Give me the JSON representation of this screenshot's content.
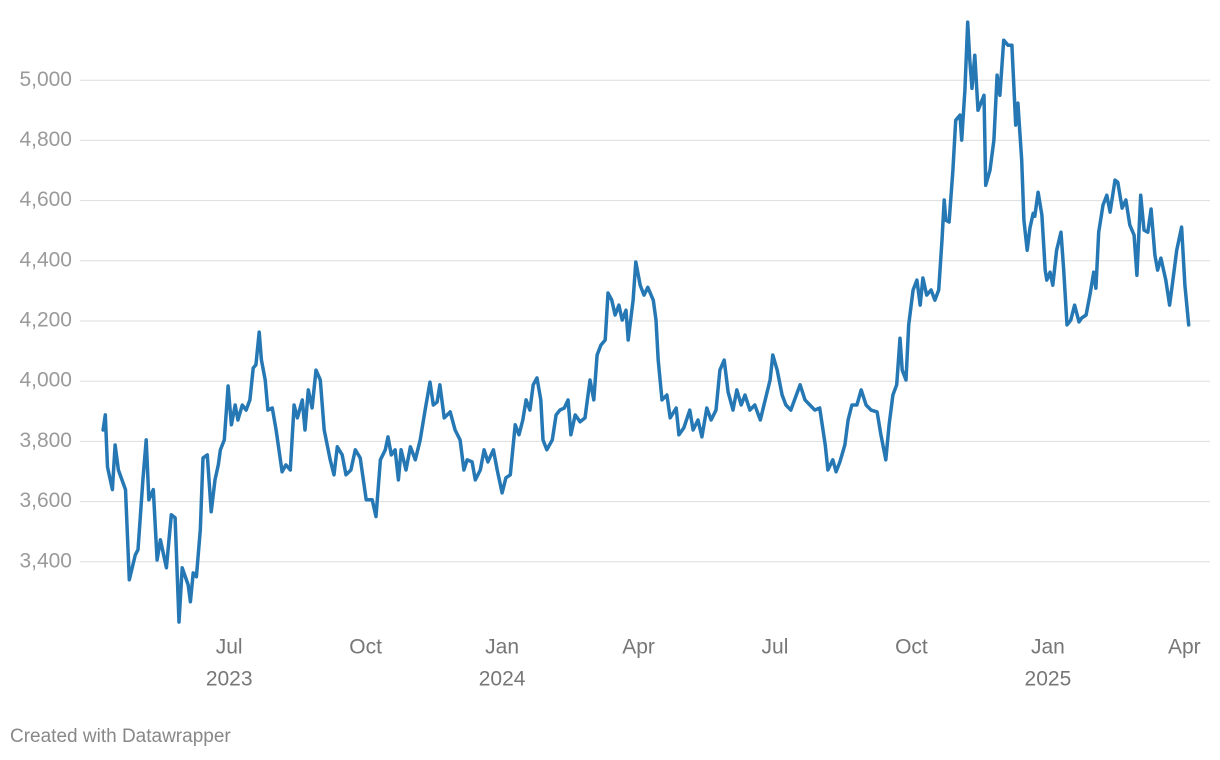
{
  "chart_data": {
    "type": "line",
    "credit": "Created with Datawrapper",
    "xlim": [
      2023.245,
      2025.297
    ],
    "ylim": [
      3180,
      5230
    ],
    "grid": true,
    "xticks": [
      {
        "value": 2023.5,
        "label": "Jul"
      },
      {
        "value": 2023.75,
        "label": "Oct"
      },
      {
        "value": 2024.0,
        "label": "Jan"
      },
      {
        "value": 2024.25,
        "label": "Apr"
      },
      {
        "value": 2024.5,
        "label": "Jul"
      },
      {
        "value": 2024.75,
        "label": "Oct"
      },
      {
        "value": 2025.0,
        "label": "Jan"
      },
      {
        "value": 2025.25,
        "label": "Apr"
      }
    ],
    "xtick_years": [
      {
        "value": 2023.5,
        "label": "2023"
      },
      {
        "value": 2024.0,
        "label": "2024"
      },
      {
        "value": 2025.0,
        "label": "2025"
      }
    ],
    "yticks": [
      {
        "value": 3400,
        "label": "3,400"
      },
      {
        "value": 3600,
        "label": "3,600"
      },
      {
        "value": 3800,
        "label": "3,800"
      },
      {
        "value": 4000,
        "label": "4,000"
      },
      {
        "value": 4200,
        "label": "4,200"
      },
      {
        "value": 4400,
        "label": "4,400"
      },
      {
        "value": 4600,
        "label": "4,600"
      },
      {
        "value": 4800,
        "label": "4,800"
      },
      {
        "value": 5000,
        "label": "5,000"
      }
    ],
    "x": [
      2023.269,
      2023.273,
      2023.277,
      2023.286,
      2023.291,
      2023.297,
      2023.31,
      2023.317,
      2023.328,
      2023.333,
      2023.342,
      2023.348,
      2023.353,
      2023.361,
      2023.368,
      2023.374,
      2023.385,
      2023.394,
      2023.401,
      2023.408,
      2023.414,
      2023.425,
      2023.429,
      2023.434,
      2023.44,
      2023.447,
      2023.452,
      2023.46,
      2023.467,
      2023.474,
      2023.48,
      2023.484,
      2023.491,
      2023.498,
      2023.504,
      2023.511,
      2023.516,
      2023.524,
      2023.531,
      2023.538,
      2023.544,
      2023.549,
      2023.555,
      2023.559,
      2023.566,
      2023.571,
      2023.579,
      2023.586,
      2023.597,
      2023.604,
      2023.612,
      2023.619,
      2023.625,
      2023.634,
      2023.639,
      2023.645,
      2023.652,
      2023.659,
      2023.667,
      2023.674,
      2023.685,
      2023.692,
      2023.698,
      2023.707,
      2023.714,
      2023.723,
      2023.731,
      2023.74,
      2023.751,
      2023.762,
      2023.769,
      2023.777,
      2023.786,
      2023.791,
      2023.797,
      2023.804,
      2023.81,
      2023.815,
      2023.824,
      2023.832,
      2023.841,
      2023.85,
      2023.859,
      2023.868,
      2023.874,
      2023.881,
      2023.886,
      2023.894,
      2023.905,
      2023.914,
      2023.923,
      2023.93,
      2023.936,
      2023.945,
      2023.951,
      2023.96,
      2023.967,
      2023.974,
      2023.984,
      2023.991,
      2024.0,
      2024.007,
      2024.015,
      2024.024,
      2024.031,
      2024.038,
      2024.044,
      2024.051,
      2024.057,
      2024.064,
      2024.071,
      2024.075,
      2024.082,
      2024.092,
      2024.099,
      2024.106,
      2024.114,
      2024.121,
      2024.126,
      2024.134,
      2024.143,
      2024.152,
      2024.161,
      2024.168,
      2024.174,
      2024.181,
      2024.189,
      2024.194,
      2024.201,
      2024.207,
      2024.214,
      2024.22,
      2024.227,
      2024.231,
      2024.24,
      2024.245,
      2024.253,
      2024.26,
      2024.267,
      2024.277,
      2024.282,
      2024.286,
      2024.293,
      2024.302,
      2024.308,
      2024.319,
      2024.324,
      2024.333,
      2024.344,
      2024.35,
      2024.359,
      2024.366,
      2024.375,
      2024.383,
      2024.392,
      2024.399,
      2024.407,
      2024.414,
      2024.423,
      2024.43,
      2024.438,
      2024.445,
      2024.454,
      2024.463,
      2024.473,
      2024.482,
      2024.491,
      2024.496,
      2024.504,
      2024.513,
      2024.52,
      2024.529,
      2024.537,
      2024.546,
      2024.555,
      2024.564,
      2024.573,
      2024.582,
      2024.592,
      2024.597,
      2024.606,
      2024.612,
      2024.619,
      2024.628,
      2024.634,
      2024.641,
      2024.65,
      2024.658,
      2024.667,
      2024.676,
      2024.687,
      2024.694,
      2024.703,
      2024.709,
      2024.716,
      2024.723,
      2024.729,
      2024.733,
      2024.74,
      2024.745,
      2024.753,
      2024.76,
      2024.766,
      2024.771,
      2024.778,
      2024.786,
      2024.793,
      2024.8,
      2024.806,
      2024.81,
      2024.813,
      2024.819,
      2024.826,
      2024.831,
      2024.839,
      2024.842,
      2024.848,
      2024.853,
      2024.857,
      2024.861,
      2024.866,
      2024.872,
      2024.883,
      2024.886,
      2024.894,
      2024.901,
      2024.907,
      2024.912,
      2024.919,
      2024.927,
      2024.934,
      2024.941,
      2024.945,
      2024.952,
      2024.956,
      2024.962,
      2024.967,
      2024.973,
      2024.976,
      2024.982,
      2024.989,
      2024.995,
      2024.998,
      2025.004,
      2025.009,
      2025.016,
      2025.024,
      2025.029,
      2025.035,
      2025.042,
      2025.049,
      2025.057,
      2025.062,
      2025.07,
      2025.077,
      2025.084,
      2025.088,
      2025.093,
      2025.101,
      2025.108,
      2025.114,
      2025.123,
      2025.128,
      2025.136,
      2025.143,
      2025.15,
      2025.158,
      2025.163,
      2025.17,
      2025.176,
      2025.183,
      2025.189,
      2025.196,
      2025.201,
      2025.207,
      2025.216,
      2025.223,
      2025.229,
      2025.236,
      2025.245,
      2025.251,
      2025.258
    ],
    "series": [
      {
        "color": "#2678b4",
        "values": [
          3838,
          3888,
          3715,
          3640,
          3788,
          3705,
          3640,
          3340,
          3423,
          3440,
          3672,
          3805,
          3606,
          3640,
          3406,
          3473,
          3380,
          3556,
          3546,
          3200,
          3380,
          3323,
          3267,
          3363,
          3350,
          3506,
          3745,
          3755,
          3566,
          3672,
          3722,
          3772,
          3805,
          3984,
          3855,
          3921,
          3871,
          3921,
          3904,
          3938,
          4044,
          4054,
          4163,
          4071,
          4004,
          3904,
          3911,
          3838,
          3699,
          3722,
          3705,
          3921,
          3878,
          3938,
          3838,
          3971,
          3911,
          4037,
          4004,
          3838,
          3739,
          3689,
          3782,
          3755,
          3689,
          3705,
          3772,
          3745,
          3606,
          3606,
          3550,
          3739,
          3772,
          3815,
          3755,
          3772,
          3672,
          3772,
          3705,
          3782,
          3739,
          3805,
          3904,
          3997,
          3921,
          3931,
          3988,
          3878,
          3898,
          3838,
          3805,
          3705,
          3739,
          3732,
          3672,
          3705,
          3772,
          3732,
          3772,
          3705,
          3629,
          3679,
          3689,
          3855,
          3822,
          3871,
          3938,
          3904,
          3988,
          4011,
          3938,
          3805,
          3772,
          3805,
          3888,
          3904,
          3911,
          3938,
          3822,
          3888,
          3865,
          3878,
          4004,
          3938,
          4087,
          4120,
          4137,
          4293,
          4269,
          4220,
          4253,
          4203,
          4236,
          4137,
          4269,
          4396,
          4319,
          4286,
          4312,
          4269,
          4203,
          4070,
          3938,
          3954,
          3878,
          3911,
          3822,
          3845,
          3904,
          3838,
          3871,
          3815,
          3911,
          3871,
          3904,
          4037,
          4070,
          3964,
          3904,
          3971,
          3921,
          3954,
          3904,
          3921,
          3871,
          3938,
          4004,
          4087,
          4037,
          3954,
          3921,
          3904,
          3944,
          3988,
          3938,
          3921,
          3904,
          3911,
          3789,
          3705,
          3739,
          3699,
          3732,
          3789,
          3871,
          3921,
          3921,
          3971,
          3921,
          3904,
          3898,
          3822,
          3739,
          3855,
          3954,
          3988,
          4143,
          4037,
          4004,
          4187,
          4303,
          4336,
          4253,
          4343,
          4286,
          4303,
          4269,
          4303,
          4469,
          4602,
          4535,
          4529,
          4701,
          4867,
          4884,
          4801,
          4967,
          5193,
          5066,
          4973,
          5083,
          4900,
          4950,
          4651,
          4701,
          4801,
          5017,
          4950,
          5133,
          5116,
          5116,
          4851,
          4924,
          4734,
          4535,
          4435,
          4508,
          4558,
          4548,
          4628,
          4552,
          4369,
          4336,
          4362,
          4319,
          4435,
          4495,
          4369,
          4187,
          4203,
          4253,
          4197,
          4210,
          4220,
          4286,
          4362,
          4309,
          4495,
          4585,
          4618,
          4562,
          4668,
          4661,
          4575,
          4602,
          4519,
          4485,
          4352,
          4618,
          4502,
          4495,
          4572,
          4419,
          4369,
          4409,
          4336,
          4253,
          4336,
          4435,
          4512,
          4319,
          4187
        ]
      }
    ]
  }
}
